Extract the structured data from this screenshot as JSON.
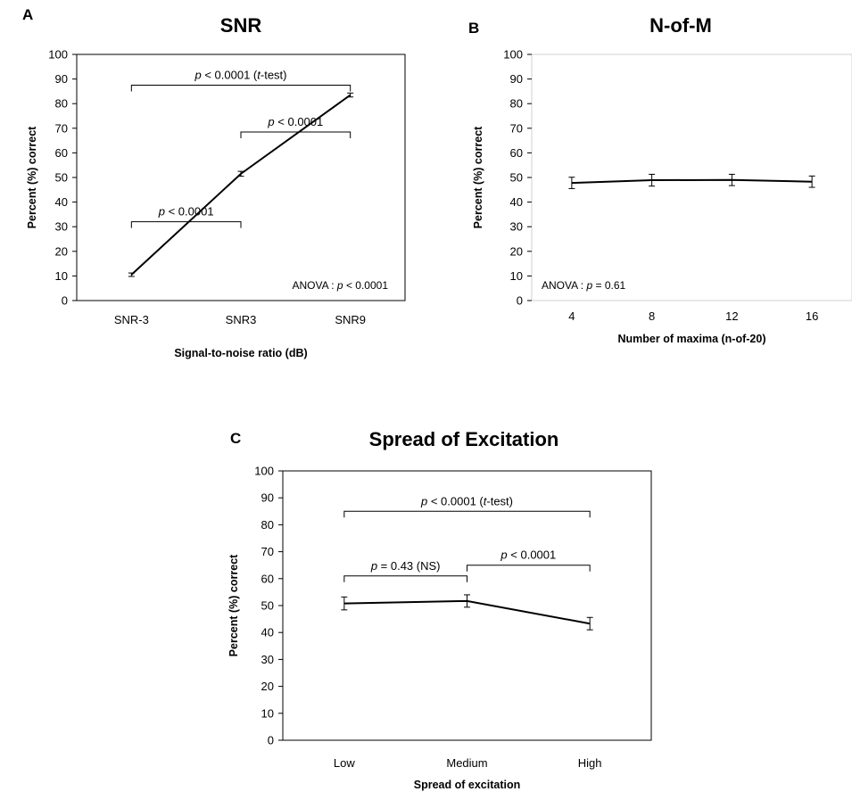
{
  "chart_data": [
    {
      "panel": "A",
      "type": "line",
      "title": "SNR",
      "xlabel": "Signal-to-noise ratio (dB)",
      "ylabel": "Percent (%) correct",
      "categories": [
        "SNR-3",
        "SNR3",
        "SNR9"
      ],
      "series": [
        {
          "values": [
            10.5,
            51.5,
            83.5
          ],
          "errors": [
            0.7,
            1.0,
            0.8
          ]
        }
      ],
      "ylim": [
        0,
        100
      ],
      "yticks": [
        0,
        10,
        20,
        30,
        40,
        50,
        60,
        70,
        80,
        90,
        100
      ],
      "grid": false,
      "annotations": {
        "anova": {
          "prefix": "ANOVA : ",
          "p": "p",
          "rest": " < 0.0001"
        },
        "brackets": [
          {
            "from": 0,
            "to": 2,
            "level": 87.5,
            "p": "p",
            "mid": " < 0.0001 (",
            "t": "t",
            "end": "-test)"
          },
          {
            "from": 1,
            "to": 2,
            "level": 68.5,
            "p": "p",
            "mid": " < 0.0001",
            "t": "",
            "end": ""
          },
          {
            "from": 0,
            "to": 1,
            "level": 32,
            "p": "p",
            "mid": " < 0.0001",
            "t": "",
            "end": ""
          }
        ]
      }
    },
    {
      "panel": "B",
      "type": "line",
      "title": "N-of-M",
      "xlabel": "Number of maxima (n-of-20)",
      "ylabel": "Percent (%) correct",
      "categories": [
        "4",
        "8",
        "12",
        "16"
      ],
      "series": [
        {
          "values": [
            47.8,
            48.9,
            49.0,
            48.3
          ],
          "errors": [
            2.3,
            2.4,
            2.3,
            2.3
          ]
        }
      ],
      "ylim": [
        0,
        100
      ],
      "yticks": [
        0,
        10,
        20,
        30,
        40,
        50,
        60,
        70,
        80,
        90,
        100
      ],
      "grid": false,
      "annotations": {
        "anova": {
          "prefix": "ANOVA : ",
          "p": "p",
          "rest": " = 0.61"
        },
        "brackets": []
      }
    },
    {
      "panel": "C",
      "type": "line",
      "title": "Spread of Excitation",
      "xlabel": "Spread of excitation",
      "ylabel": "Percent (%) correct",
      "categories": [
        "Low",
        "Medium",
        "High"
      ],
      "series": [
        {
          "values": [
            50.8,
            51.7,
            43.3
          ],
          "errors": [
            2.4,
            2.3,
            2.3
          ]
        }
      ],
      "ylim": [
        0,
        100
      ],
      "yticks": [
        0,
        10,
        20,
        30,
        40,
        50,
        60,
        70,
        80,
        90,
        100
      ],
      "grid": false,
      "annotations": {
        "anova": null,
        "brackets": [
          {
            "from": 0,
            "to": 2,
            "level": 85,
            "p": "p",
            "mid": " < 0.0001 (",
            "t": "t",
            "end": "-test)"
          },
          {
            "from": 1,
            "to": 2,
            "level": 65,
            "p": "p",
            "mid": " < 0.0001",
            "t": "",
            "end": ""
          },
          {
            "from": 0,
            "to": 1,
            "level": 61,
            "p": "p",
            "mid": " = 0.43 (NS)",
            "t": "",
            "end": ""
          }
        ]
      }
    }
  ]
}
